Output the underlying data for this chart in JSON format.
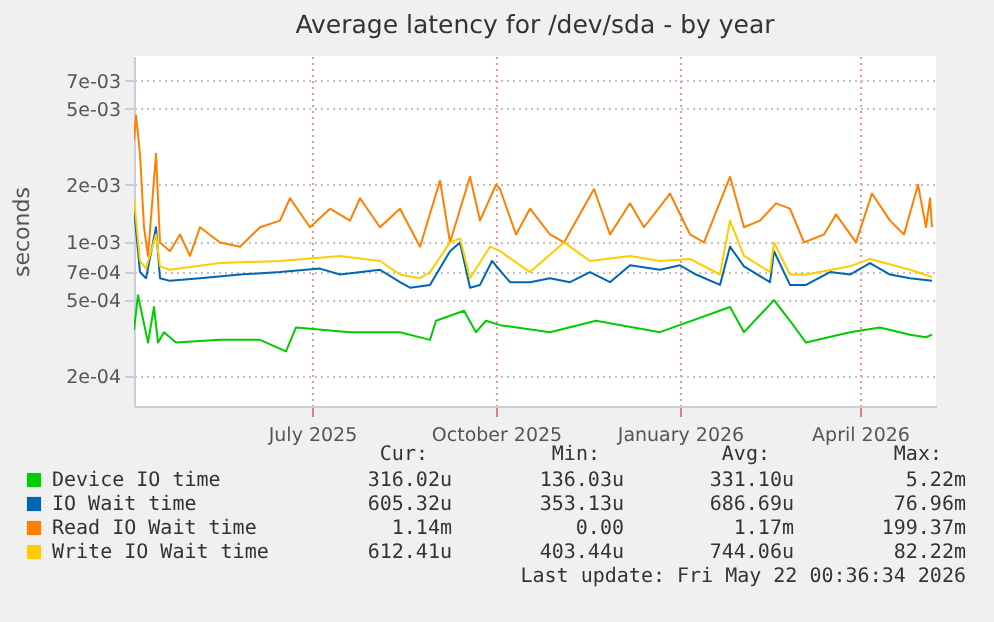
{
  "chart_data": {
    "type": "line",
    "title": "Average latency for /dev/sda - by year",
    "ylabel": "seconds",
    "log": "y",
    "grid": true,
    "legend": "bottom",
    "xlim": [
      "2025-04-03",
      "2026-05-09"
    ],
    "xticks": [
      {
        "value": "2025-07-01",
        "label": "July 2025"
      },
      {
        "value": "2025-10-01",
        "label": "October 2025"
      },
      {
        "value": "2026-01-01",
        "label": "January 2026"
      },
      {
        "value": "2026-04-01",
        "label": "April 2026"
      }
    ],
    "ylim": [
      0.00014,
      0.0094
    ],
    "yticks": [
      {
        "value": 0.0002,
        "label": "2e-04"
      },
      {
        "value": 0.0005,
        "label": "5e-04"
      },
      {
        "value": 0.0007,
        "label": "7e-04"
      },
      {
        "value": 0.001,
        "label": "1e-03"
      },
      {
        "value": 0.002,
        "label": "2e-03"
      },
      {
        "value": 0.005,
        "label": "5e-03"
      },
      {
        "value": 0.007,
        "label": "7e-03"
      }
    ],
    "series": [
      {
        "name": "Device IO time",
        "color": "#00cc00",
        "x": [
          "2025-04-03",
          "2025-04-05",
          "2025-04-10",
          "2025-04-13",
          "2025-04-15",
          "2025-04-18",
          "2025-04-24",
          "2025-05-16",
          "2025-06-05",
          "2025-06-18",
          "2025-06-23",
          "2025-07-20",
          "2025-08-14",
          "2025-08-29",
          "2025-09-01",
          "2025-09-15",
          "2025-09-21",
          "2025-09-26",
          "2025-10-03",
          "2025-10-28",
          "2025-11-20",
          "2025-12-22",
          "2026-01-26",
          "2026-02-02",
          "2026-02-17",
          "2026-02-25",
          "2026-03-05",
          "2026-03-27",
          "2026-04-11",
          "2026-04-26",
          "2026-05-04",
          "2026-05-07"
        ],
        "values": [
          0.00035,
          0.00053,
          0.0003,
          0.00046,
          0.0003,
          0.00034,
          0.0003,
          0.00031,
          0.00031,
          0.00027,
          0.00036,
          0.00034,
          0.00034,
          0.00031,
          0.00039,
          0.00044,
          0.00034,
          0.00039,
          0.00037,
          0.00034,
          0.00039,
          0.00034,
          0.00046,
          0.00034,
          0.0005,
          0.00039,
          0.0003,
          0.00034,
          0.00036,
          0.00033,
          0.00032,
          0.00033
        ]
      },
      {
        "name": "IO Wait time",
        "color": "#0066b3",
        "x": [
          "2025-04-03",
          "2025-04-06",
          "2025-04-09",
          "2025-04-14",
          "2025-04-16",
          "2025-04-21",
          "2025-05-06",
          "2025-05-26",
          "2025-06-15",
          "2025-07-05",
          "2025-07-15",
          "2025-08-04",
          "2025-08-14",
          "2025-08-19",
          "2025-08-29",
          "2025-09-08",
          "2025-09-13",
          "2025-09-18",
          "2025-09-23",
          "2025-09-29",
          "2025-10-08",
          "2025-10-18",
          "2025-10-28",
          "2025-11-07",
          "2025-11-17",
          "2025-11-27",
          "2025-12-07",
          "2025-12-22",
          "2026-01-01",
          "2026-01-09",
          "2026-01-21",
          "2026-01-26",
          "2026-02-02",
          "2026-02-15",
          "2026-02-17",
          "2026-02-25",
          "2026-03-05",
          "2026-03-17",
          "2026-03-27",
          "2026-04-06",
          "2026-04-16",
          "2026-04-26",
          "2026-05-07"
        ],
        "values": [
          0.0015,
          0.0007,
          0.00065,
          0.0012,
          0.00065,
          0.00063,
          0.00065,
          0.00068,
          0.0007,
          0.00073,
          0.00068,
          0.00072,
          0.00062,
          0.00058,
          0.0006,
          0.0009,
          0.001,
          0.00058,
          0.0006,
          0.0008,
          0.00062,
          0.00062,
          0.00065,
          0.00062,
          0.0007,
          0.00062,
          0.00076,
          0.00072,
          0.00076,
          0.00068,
          0.0006,
          0.00095,
          0.00075,
          0.00062,
          0.0009,
          0.0006,
          0.0006,
          0.0007,
          0.00068,
          0.00078,
          0.00068,
          0.00065,
          0.00063
        ]
      },
      {
        "name": "Read IO Wait time",
        "color": "#ff8000",
        "x": [
          "2025-04-03",
          "2025-04-04",
          "2025-04-06",
          "2025-04-08",
          "2025-04-10",
          "2025-04-14",
          "2025-04-16",
          "2025-04-21",
          "2025-04-26",
          "2025-05-01",
          "2025-05-06",
          "2025-05-16",
          "2025-05-26",
          "2025-06-05",
          "2025-06-15",
          "2025-06-20",
          "2025-06-30",
          "2025-07-10",
          "2025-07-20",
          "2025-07-25",
          "2025-08-04",
          "2025-08-14",
          "2025-08-24",
          "2025-09-03",
          "2025-09-08",
          "2025-09-18",
          "2025-09-23",
          "2025-10-01",
          "2025-10-03",
          "2025-10-11",
          "2025-10-18",
          "2025-10-28",
          "2025-11-04",
          "2025-11-19",
          "2025-11-27",
          "2025-12-07",
          "2025-12-14",
          "2025-12-27",
          "2026-01-06",
          "2026-01-13",
          "2026-01-26",
          "2026-02-02",
          "2026-02-10",
          "2026-02-18",
          "2026-02-25",
          "2026-03-04",
          "2026-03-14",
          "2026-03-20",
          "2026-03-30",
          "2026-04-07",
          "2026-04-16",
          "2026-04-23",
          "2026-04-30",
          "2026-05-04",
          "2026-05-06",
          "2026-05-07"
        ],
        "values": [
          0.0034,
          0.0046,
          0.0029,
          0.0012,
          0.00085,
          0.0029,
          0.001,
          0.0009,
          0.0011,
          0.00085,
          0.0012,
          0.001,
          0.00095,
          0.0012,
          0.0013,
          0.0017,
          0.0012,
          0.0015,
          0.0013,
          0.0017,
          0.0012,
          0.0015,
          0.00095,
          0.0021,
          0.001,
          0.0022,
          0.0013,
          0.002,
          0.0019,
          0.0011,
          0.0015,
          0.0011,
          0.001,
          0.0019,
          0.0011,
          0.0016,
          0.0012,
          0.0018,
          0.0011,
          0.001,
          0.0022,
          0.0012,
          0.0013,
          0.0016,
          0.0015,
          0.001,
          0.0011,
          0.0014,
          0.001,
          0.0018,
          0.0013,
          0.0011,
          0.002,
          0.0012,
          0.0017,
          0.0012
        ]
      },
      {
        "name": "Write IO Wait time",
        "color": "#ffcc00",
        "x": [
          "2025-04-03",
          "2025-04-06",
          "2025-04-09",
          "2025-04-14",
          "2025-04-16",
          "2025-04-21",
          "2025-05-16",
          "2025-06-15",
          "2025-07-15",
          "2025-08-04",
          "2025-08-14",
          "2025-08-24",
          "2025-08-29",
          "2025-09-08",
          "2025-09-13",
          "2025-09-18",
          "2025-09-28",
          "2025-10-03",
          "2025-10-18",
          "2025-11-04",
          "2025-11-17",
          "2025-12-07",
          "2025-12-22",
          "2026-01-06",
          "2026-01-21",
          "2026-01-26",
          "2026-02-02",
          "2026-02-15",
          "2026-02-17",
          "2026-02-25",
          "2026-03-05",
          "2026-03-27",
          "2026-04-06",
          "2026-04-26",
          "2026-05-07"
        ],
        "values": [
          0.0017,
          0.0008,
          0.00073,
          0.0011,
          0.00075,
          0.00072,
          0.00078,
          0.0008,
          0.00085,
          0.0008,
          0.00068,
          0.00065,
          0.0007,
          0.001,
          0.00105,
          0.00065,
          0.00095,
          0.0009,
          0.0007,
          0.001,
          0.0008,
          0.00085,
          0.0008,
          0.00082,
          0.00068,
          0.0013,
          0.00085,
          0.0007,
          0.001,
          0.00068,
          0.00068,
          0.00075,
          0.00082,
          0.00072,
          0.00066
        ]
      }
    ],
    "annotations": [
      "Cur:",
      "Min:",
      "Avg:",
      "Max:",
      "316.02u",
      "136.03u",
      "331.10u",
      "5.22m",
      "605.32u",
      "353.13u",
      "686.69u",
      "76.96m",
      "1.14m",
      "0.00",
      "1.17m",
      "199.37m",
      "612.41u",
      "403.44u",
      "744.06u",
      "82.22m",
      "Last update: Fri May 22 00:36:34 2026"
    ]
  }
}
